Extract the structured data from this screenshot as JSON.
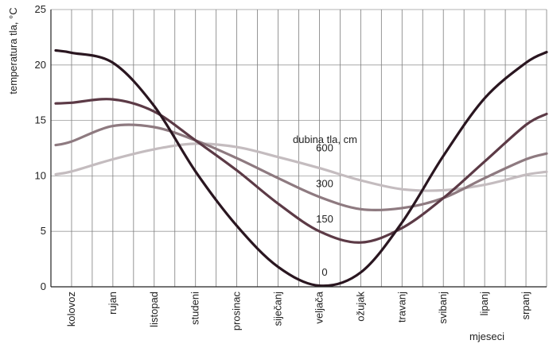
{
  "chart_data": {
    "type": "line",
    "ylabel": "temperatura tla, °C",
    "xlabel": "mjeseci",
    "legend_title": "dubina tla, cm",
    "ylim": [
      0,
      25
    ],
    "yticks": [
      0,
      5,
      10,
      15,
      20,
      25
    ],
    "grid": true,
    "categories": [
      "kolovoz",
      "rujan",
      "listopad",
      "studeni",
      "prosinac",
      "siječanj",
      "veljača",
      "ožujak",
      "travanj",
      "svibanj",
      "lipanj",
      "srpanj"
    ],
    "series": [
      {
        "name": "0",
        "color": "#2a1620",
        "values": [
          21.1,
          20.2,
          16.3,
          10.4,
          5.5,
          1.8,
          0.1,
          1.3,
          5.8,
          11.8,
          17.0,
          20.2
        ]
      },
      {
        "name": "150",
        "color": "#5c3a46",
        "values": [
          16.6,
          16.9,
          15.8,
          13.2,
          10.5,
          7.5,
          5.0,
          4.0,
          5.3,
          8.0,
          11.3,
          14.6
        ]
      },
      {
        "name": "300",
        "color": "#8e7a80",
        "values": [
          13.1,
          14.5,
          14.4,
          13.2,
          11.6,
          9.8,
          8.1,
          7.0,
          7.1,
          8.0,
          9.8,
          11.5
        ]
      },
      {
        "name": "600",
        "color": "#c4bcbf",
        "values": [
          10.4,
          11.5,
          12.4,
          12.9,
          12.6,
          11.7,
          10.7,
          9.6,
          8.8,
          8.7,
          9.2,
          10.1
        ]
      }
    ]
  }
}
